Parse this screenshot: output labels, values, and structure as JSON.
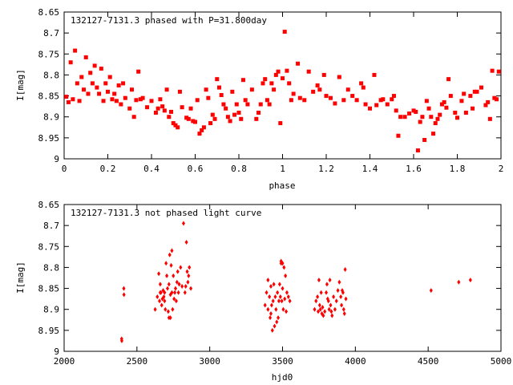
{
  "chart_data": [
    {
      "type": "scatter",
      "title": "132127-7131.3 phased with P=31.800day",
      "xlabel": "phase",
      "ylabel": "I[mag]",
      "xlim": [
        0,
        2
      ],
      "ylim": [
        8.65,
        9
      ],
      "y_inverted": true,
      "xticks": [
        "0",
        "0.2",
        "0.4",
        "0.6",
        "0.8",
        "1",
        "1.2",
        "1.4",
        "1.6",
        "1.8",
        "2"
      ],
      "yticks": [
        "8.65",
        "8.7",
        "8.75",
        "8.8",
        "8.85",
        "8.9",
        "8.95",
        "9"
      ],
      "grid": false,
      "marker_color": "#ff0000",
      "points": [
        [
          0.01,
          8.852
        ],
        [
          0.02,
          8.865
        ],
        [
          0.03,
          8.77
        ],
        [
          0.04,
          8.858
        ],
        [
          0.05,
          8.742
        ],
        [
          0.06,
          8.82
        ],
        [
          0.07,
          8.862
        ],
        [
          0.08,
          8.805
        ],
        [
          0.09,
          8.835
        ],
        [
          0.1,
          8.758
        ],
        [
          0.11,
          8.845
        ],
        [
          0.12,
          8.795
        ],
        [
          0.13,
          8.82
        ],
        [
          0.14,
          8.778
        ],
        [
          0.15,
          8.83
        ],
        [
          0.16,
          8.845
        ],
        [
          0.17,
          8.785
        ],
        [
          0.18,
          8.862
        ],
        [
          0.19,
          8.82
        ],
        [
          0.2,
          8.84
        ],
        [
          0.21,
          8.805
        ],
        [
          0.22,
          8.858
        ],
        [
          0.23,
          8.845
        ],
        [
          0.24,
          8.862
        ],
        [
          0.25,
          8.825
        ],
        [
          0.26,
          8.87
        ],
        [
          0.27,
          8.82
        ],
        [
          0.28,
          8.855
        ],
        [
          0.3,
          8.88
        ],
        [
          0.31,
          8.835
        ],
        [
          0.32,
          8.9
        ],
        [
          0.33,
          8.86
        ],
        [
          0.34,
          8.792
        ],
        [
          0.35,
          8.858
        ],
        [
          0.36,
          8.855
        ],
        [
          0.38,
          8.877
        ],
        [
          0.4,
          8.862
        ],
        [
          0.42,
          8.89
        ],
        [
          0.43,
          8.88
        ],
        [
          0.44,
          8.858
        ],
        [
          0.45,
          8.875
        ],
        [
          0.46,
          8.885
        ],
        [
          0.47,
          8.835
        ],
        [
          0.48,
          8.9
        ],
        [
          0.49,
          8.888
        ],
        [
          0.5,
          8.915
        ],
        [
          0.51,
          8.92
        ],
        [
          0.52,
          8.925
        ],
        [
          0.53,
          8.84
        ],
        [
          0.54,
          8.877
        ],
        [
          0.56,
          8.902
        ],
        [
          0.57,
          8.905
        ],
        [
          0.58,
          8.88
        ],
        [
          0.59,
          8.91
        ],
        [
          0.6,
          8.912
        ],
        [
          0.61,
          8.86
        ],
        [
          0.62,
          8.94
        ],
        [
          0.63,
          8.932
        ],
        [
          0.64,
          8.925
        ],
        [
          0.65,
          8.835
        ],
        [
          0.66,
          8.855
        ],
        [
          0.67,
          8.915
        ],
        [
          0.68,
          8.895
        ],
        [
          0.69,
          8.905
        ],
        [
          0.7,
          8.81
        ],
        [
          0.71,
          8.83
        ],
        [
          0.72,
          8.848
        ],
        [
          0.73,
          8.87
        ],
        [
          0.74,
          8.88
        ],
        [
          0.75,
          8.9
        ],
        [
          0.76,
          8.91
        ],
        [
          0.77,
          8.84
        ],
        [
          0.78,
          8.895
        ],
        [
          0.79,
          8.87
        ],
        [
          0.8,
          8.89
        ],
        [
          0.81,
          8.905
        ],
        [
          0.82,
          8.812
        ],
        [
          0.83,
          8.86
        ],
        [
          0.84,
          8.87
        ],
        [
          0.86,
          8.835
        ],
        [
          0.88,
          8.905
        ],
        [
          0.89,
          8.89
        ],
        [
          0.9,
          8.87
        ],
        [
          0.91,
          8.82
        ],
        [
          0.92,
          8.81
        ],
        [
          0.93,
          8.86
        ],
        [
          0.94,
          8.87
        ],
        [
          0.95,
          8.82
        ],
        [
          0.96,
          8.835
        ],
        [
          0.97,
          8.8
        ],
        [
          0.98,
          8.792
        ],
        [
          0.99,
          8.915
        ],
        [
          1.0,
          8.808
        ],
        [
          1.01,
          8.697
        ],
        [
          1.02,
          8.79
        ],
        [
          1.03,
          8.82
        ],
        [
          1.04,
          8.86
        ],
        [
          1.05,
          8.845
        ],
        [
          1.07,
          8.773
        ],
        [
          1.08,
          8.855
        ],
        [
          1.1,
          8.86
        ],
        [
          1.12,
          8.792
        ],
        [
          1.14,
          8.84
        ],
        [
          1.16,
          8.825
        ],
        [
          1.17,
          8.835
        ],
        [
          1.19,
          8.8
        ],
        [
          1.2,
          8.85
        ],
        [
          1.22,
          8.855
        ],
        [
          1.24,
          8.868
        ],
        [
          1.26,
          8.805
        ],
        [
          1.28,
          8.86
        ],
        [
          1.3,
          8.835
        ],
        [
          1.32,
          8.85
        ],
        [
          1.34,
          8.86
        ],
        [
          1.36,
          8.82
        ],
        [
          1.37,
          8.83
        ],
        [
          1.38,
          8.87
        ],
        [
          1.4,
          8.88
        ],
        [
          1.42,
          8.8
        ],
        [
          1.43,
          8.872
        ],
        [
          1.45,
          8.86
        ],
        [
          1.46,
          8.858
        ],
        [
          1.48,
          8.87
        ],
        [
          1.5,
          8.858
        ],
        [
          1.51,
          8.85
        ],
        [
          1.52,
          8.885
        ],
        [
          1.53,
          8.945
        ],
        [
          1.54,
          8.9
        ],
        [
          1.56,
          8.9
        ],
        [
          1.58,
          8.892
        ],
        [
          1.6,
          8.885
        ],
        [
          1.61,
          8.888
        ],
        [
          1.62,
          8.98
        ],
        [
          1.63,
          8.912
        ],
        [
          1.64,
          8.9
        ],
        [
          1.65,
          8.955
        ],
        [
          1.66,
          8.862
        ],
        [
          1.67,
          8.88
        ],
        [
          1.68,
          8.9
        ],
        [
          1.69,
          8.94
        ],
        [
          1.7,
          8.915
        ],
        [
          1.71,
          8.905
        ],
        [
          1.72,
          8.895
        ],
        [
          1.73,
          8.87
        ],
        [
          1.74,
          8.865
        ],
        [
          1.75,
          8.878
        ],
        [
          1.76,
          8.81
        ],
        [
          1.77,
          8.85
        ],
        [
          1.79,
          8.89
        ],
        [
          1.8,
          8.902
        ],
        [
          1.82,
          8.862
        ],
        [
          1.83,
          8.845
        ],
        [
          1.84,
          8.89
        ],
        [
          1.86,
          8.85
        ],
        [
          1.87,
          8.88
        ],
        [
          1.88,
          8.84
        ],
        [
          1.89,
          8.84
        ],
        [
          1.91,
          8.83
        ],
        [
          1.93,
          8.872
        ],
        [
          1.94,
          8.865
        ],
        [
          1.95,
          8.905
        ],
        [
          1.96,
          8.79
        ],
        [
          1.97,
          8.855
        ],
        [
          1.98,
          8.858
        ],
        [
          1.99,
          8.792
        ]
      ]
    },
    {
      "type": "scatter",
      "title": "132127-7131.3 not phased light curve",
      "xlabel": "hjd0",
      "ylabel": "I[mag]",
      "xlim": [
        2000,
        5000
      ],
      "ylim": [
        8.65,
        9
      ],
      "y_inverted": true,
      "xticks": [
        "2000",
        "2500",
        "3000",
        "3500",
        "4000",
        "4500",
        "5000"
      ],
      "yticks": [
        "8.65",
        "8.7",
        "8.75",
        "8.8",
        "8.85",
        "8.9",
        "8.95",
        "9"
      ],
      "grid": false,
      "marker_color": "#ff0000",
      "points": [
        [
          2395,
          8.97
        ],
        [
          2396,
          8.975
        ],
        [
          2410,
          8.85
        ],
        [
          2411,
          8.865
        ],
        [
          2625,
          8.9
        ],
        [
          2640,
          8.87
        ],
        [
          2650,
          8.815
        ],
        [
          2655,
          8.88
        ],
        [
          2660,
          8.84
        ],
        [
          2665,
          8.86
        ],
        [
          2670,
          8.89
        ],
        [
          2675,
          8.875
        ],
        [
          2680,
          8.855
        ],
        [
          2685,
          8.87
        ],
        [
          2690,
          8.86
        ],
        [
          2695,
          8.9
        ],
        [
          2700,
          8.79
        ],
        [
          2705,
          8.82
        ],
        [
          2710,
          8.85
        ],
        [
          2715,
          8.905
        ],
        [
          2720,
          8.84
        ],
        [
          2725,
          8.77
        ],
        [
          2730,
          8.865
        ],
        [
          2735,
          8.795
        ],
        [
          2740,
          8.86
        ],
        [
          2745,
          8.9
        ],
        [
          2750,
          8.82
        ],
        [
          2755,
          8.875
        ],
        [
          2760,
          8.86
        ],
        [
          2765,
          8.85
        ],
        [
          2770,
          8.88
        ],
        [
          2775,
          8.835
        ],
        [
          2780,
          8.81
        ],
        [
          2785,
          8.86
        ],
        [
          2790,
          8.84
        ],
        [
          2800,
          8.8
        ],
        [
          2810,
          8.845
        ],
        [
          2820,
          8.695
        ],
        [
          2830,
          8.86
        ],
        [
          2835,
          8.845
        ],
        [
          2840,
          8.74
        ],
        [
          2845,
          8.81
        ],
        [
          2850,
          8.835
        ],
        [
          2855,
          8.82
        ],
        [
          2860,
          8.8
        ],
        [
          2870,
          8.85
        ],
        [
          2730,
          8.92
        ],
        [
          2720,
          8.92
        ],
        [
          2690,
          8.88
        ],
        [
          2660,
          8.86
        ],
        [
          2740,
          8.76
        ],
        [
          3380,
          8.89
        ],
        [
          3390,
          8.86
        ],
        [
          3400,
          8.9
        ],
        [
          3410,
          8.87
        ],
        [
          3415,
          8.92
        ],
        [
          3420,
          8.845
        ],
        [
          3425,
          8.89
        ],
        [
          3430,
          8.95
        ],
        [
          3435,
          8.88
        ],
        [
          3440,
          8.84
        ],
        [
          3445,
          8.94
        ],
        [
          3450,
          8.87
        ],
        [
          3455,
          8.9
        ],
        [
          3460,
          8.93
        ],
        [
          3465,
          8.86
        ],
        [
          3470,
          8.92
        ],
        [
          3475,
          8.88
        ],
        [
          3480,
          8.84
        ],
        [
          3485,
          8.87
        ],
        [
          3490,
          8.79
        ],
        [
          3495,
          8.88
        ],
        [
          3500,
          8.85
        ],
        [
          3505,
          8.9
        ],
        [
          3510,
          8.8
        ],
        [
          3515,
          8.875
        ],
        [
          3520,
          8.82
        ],
        [
          3525,
          8.905
        ],
        [
          3530,
          8.86
        ],
        [
          3540,
          8.87
        ],
        [
          3550,
          8.88
        ],
        [
          3400,
          8.83
        ],
        [
          3420,
          8.91
        ],
        [
          3490,
          8.785
        ],
        [
          3500,
          8.79
        ],
        [
          3720,
          8.9
        ],
        [
          3730,
          8.88
        ],
        [
          3740,
          8.87
        ],
        [
          3745,
          8.905
        ],
        [
          3750,
          8.83
        ],
        [
          3755,
          8.89
        ],
        [
          3760,
          8.9
        ],
        [
          3765,
          8.86
        ],
        [
          3770,
          8.91
        ],
        [
          3775,
          8.895
        ],
        [
          3780,
          8.915
        ],
        [
          3790,
          8.905
        ],
        [
          3800,
          8.86
        ],
        [
          3805,
          8.84
        ],
        [
          3810,
          8.875
        ],
        [
          3815,
          8.88
        ],
        [
          3820,
          8.9
        ],
        [
          3825,
          8.83
        ],
        [
          3830,
          8.89
        ],
        [
          3835,
          8.905
        ],
        [
          3840,
          8.915
        ],
        [
          3850,
          8.87
        ],
        [
          3860,
          8.9
        ],
        [
          3870,
          8.88
        ],
        [
          3880,
          8.855
        ],
        [
          3890,
          8.835
        ],
        [
          3900,
          8.87
        ],
        [
          3905,
          8.89
        ],
        [
          3910,
          8.855
        ],
        [
          3915,
          8.86
        ],
        [
          3920,
          8.9
        ],
        [
          3925,
          8.91
        ],
        [
          3930,
          8.805
        ],
        [
          3935,
          8.875
        ],
        [
          4520,
          8.855
        ],
        [
          4710,
          8.835
        ],
        [
          4790,
          8.83
        ]
      ]
    }
  ]
}
